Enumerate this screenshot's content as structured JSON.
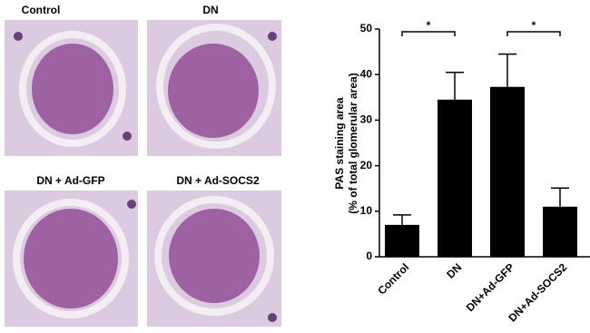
{
  "panels": [
    {
      "label": "Control"
    },
    {
      "label": "DN"
    },
    {
      "label": "DN + Ad-GFP"
    },
    {
      "label": "DN + Ad-SOCS2"
    }
  ],
  "chart_data": {
    "type": "bar",
    "y_label": [
      "PAS staining area",
      "(% of total glomerular area)"
    ],
    "categories": [
      "Control",
      "DN",
      "DN+Ad-GFP",
      "DN+Ad-SOCS2"
    ],
    "values": [
      7,
      34.5,
      37.3,
      11
    ],
    "errors": [
      2.2,
      6,
      7.2,
      4.1
    ],
    "color": "#000000",
    "ylim": [
      0,
      50
    ],
    "yticks": [
      0,
      10,
      20,
      30,
      40,
      50
    ],
    "annotations": [
      {
        "text": "*",
        "categories": [
          "Control",
          "DN"
        ]
      },
      {
        "text": "*",
        "categories": [
          "DN+Ad-GFP",
          "DN+Ad-SOCS2"
        ]
      }
    ]
  }
}
